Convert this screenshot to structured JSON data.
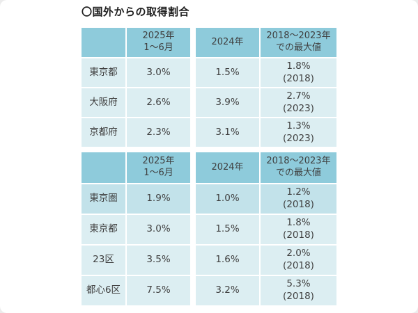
{
  "page": {
    "title": "〇国外からの取得割合"
  },
  "colors": {
    "header_bg": "#8ecbdb",
    "cell_bg": "#dceef2",
    "highlight_bg": "#c2e2ea",
    "text": "#3f3f3f"
  },
  "tables": [
    {
      "headers": [
        "",
        "2025年\n1〜6月",
        "2024年",
        "2018〜2023年\nでの最大値"
      ],
      "rows": [
        {
          "label": "東京都",
          "values": [
            "3.0%",
            "1.5%",
            "1.8%\n(2018)"
          ]
        },
        {
          "label": "大阪府",
          "values": [
            "2.6%",
            "3.9%",
            "2.7%\n(2023)"
          ]
        },
        {
          "label": "京都府",
          "values": [
            "2.3%",
            "3.1%",
            "1.3%\n(2023)"
          ]
        }
      ]
    },
    {
      "headers": [
        "",
        "2025年\n1〜6月",
        "2024年",
        "2018〜2023年\nでの最大値"
      ],
      "rows": [
        {
          "label": "東京圏",
          "values": [
            "1.9%",
            "1.0%",
            "1.2%\n(2018)"
          ],
          "highlight": true
        },
        {
          "label": "東京都",
          "values": [
            "3.0%",
            "1.5%",
            "1.8%\n(2018)"
          ]
        },
        {
          "label": "23区",
          "values": [
            "3.5%",
            "1.6%",
            "2.0%\n(2018)"
          ]
        },
        {
          "label": "都心6区",
          "values": [
            "7.5%",
            "3.2%",
            "5.3%\n(2018)"
          ]
        }
      ]
    }
  ],
  "chart_data": [
    {
      "type": "table",
      "title": "〇国外からの取得割合",
      "columns": [
        "",
        "2025年 1〜6月",
        "2024年",
        "2018〜2023年での最大値"
      ],
      "rows": [
        [
          "東京都",
          "3.0%",
          "1.5%",
          "1.8% (2018)"
        ],
        [
          "大阪府",
          "2.6%",
          "3.9%",
          "2.7% (2023)"
        ],
        [
          "京都府",
          "2.3%",
          "3.1%",
          "1.3% (2023)"
        ]
      ]
    },
    {
      "type": "table",
      "title": "〇国外からの取得割合",
      "columns": [
        "",
        "2025年 1〜6月",
        "2024年",
        "2018〜2023年での最大値"
      ],
      "rows": [
        [
          "東京圏",
          "1.9%",
          "1.0%",
          "1.2% (2018)"
        ],
        [
          "東京都",
          "3.0%",
          "1.5%",
          "1.8% (2018)"
        ],
        [
          "23区",
          "3.5%",
          "1.6%",
          "2.0% (2018)"
        ],
        [
          "都心6区",
          "7.5%",
          "3.2%",
          "5.3% (2018)"
        ]
      ]
    }
  ]
}
